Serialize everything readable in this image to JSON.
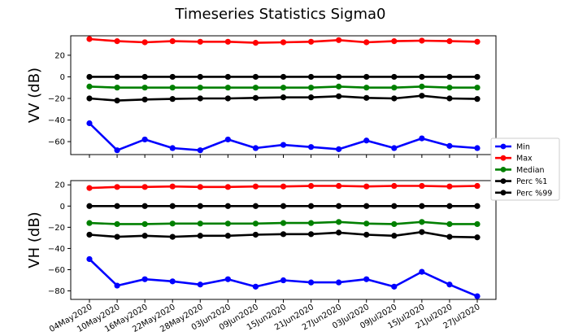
{
  "chart_data": {
    "type": "line",
    "title": "Timeseries Statistics Sigma0",
    "x": [
      "04May2020",
      "10May2020",
      "16May2020",
      "22May2020",
      "28May2020",
      "03Jun2020",
      "09Jun2020",
      "15Jun2020",
      "21Jun2020",
      "27Jun2020",
      "03Jul2020",
      "09Jul2020",
      "15Jul2020",
      "21Jul2020",
      "27Jul2020"
    ],
    "legend": {
      "placement": "right",
      "entries": [
        "Min",
        "Max",
        "Median",
        "Perc %1",
        "Perc %99"
      ]
    },
    "colors": {
      "Min": "#0000ff",
      "Max": "#ff0000",
      "Median": "#008000",
      "Perc %1": "#000000",
      "Perc %99": "#000000"
    },
    "panels": [
      {
        "ylabel": "VV (dB)",
        "ylim": [
          -72,
          38
        ],
        "yticks": [
          20,
          0,
          -20,
          -40,
          -60
        ],
        "grid": false,
        "series": [
          {
            "name": "Min",
            "values": [
              -43,
              -68,
              -58,
              -66,
              -68,
              -58,
              -66,
              -63,
              -65,
              -67,
              -59,
              -66,
              -57,
              -64,
              -66
            ]
          },
          {
            "name": "Max",
            "values": [
              35,
              33,
              32,
              33,
              32.5,
              32.5,
              31.5,
              32,
              32.5,
              34,
              32,
              33,
              33.5,
              33,
              32.5
            ]
          },
          {
            "name": "Median",
            "values": [
              -9,
              -10,
              -10,
              -10,
              -10,
              -10,
              -10,
              -10,
              -10,
              -9,
              -10,
              -10,
              -9,
              -10,
              -10
            ]
          },
          {
            "name": "Perc %1",
            "values": [
              0,
              0,
              0,
              0,
              0,
              0,
              0,
              0,
              0,
              0,
              0,
              0,
              0,
              0,
              0
            ]
          },
          {
            "name": "Perc %99",
            "values": [
              -20,
              -22,
              -21,
              -20.5,
              -20,
              -20,
              -19.5,
              -19,
              -19,
              -18,
              -19.5,
              -20,
              -17.5,
              -20,
              -20.5
            ]
          }
        ]
      },
      {
        "ylabel": "VH (dB)",
        "ylim": [
          -88,
          24
        ],
        "yticks": [
          20,
          0,
          -20,
          -40,
          -60,
          -80
        ],
        "grid": false,
        "series": [
          {
            "name": "Min",
            "values": [
              -50,
              -75,
              -69,
              -71,
              -74,
              -69,
              -76,
              -70,
              -72,
              -72,
              -69,
              -76,
              -62,
              -74,
              -85
            ]
          },
          {
            "name": "Max",
            "values": [
              17,
              18,
              18,
              18.5,
              18,
              18,
              18.5,
              18.5,
              19,
              19,
              18.5,
              19,
              19,
              18.5,
              19
            ]
          },
          {
            "name": "Median",
            "values": [
              -16,
              -17,
              -17,
              -16.5,
              -16.5,
              -16.5,
              -16.5,
              -16,
              -16,
              -15,
              -16.5,
              -17,
              -15,
              -17,
              -17
            ]
          },
          {
            "name": "Perc %1",
            "values": [
              0,
              0,
              0,
              0,
              0,
              0,
              0,
              0,
              0,
              0,
              0,
              0,
              0,
              0,
              0
            ]
          },
          {
            "name": "Perc %99",
            "values": [
              -27,
              -29,
              -28,
              -29,
              -28,
              -28,
              -27,
              -26.5,
              -26.5,
              -25,
              -27,
              -28,
              -24.5,
              -29,
              -29.5
            ]
          }
        ]
      }
    ]
  }
}
